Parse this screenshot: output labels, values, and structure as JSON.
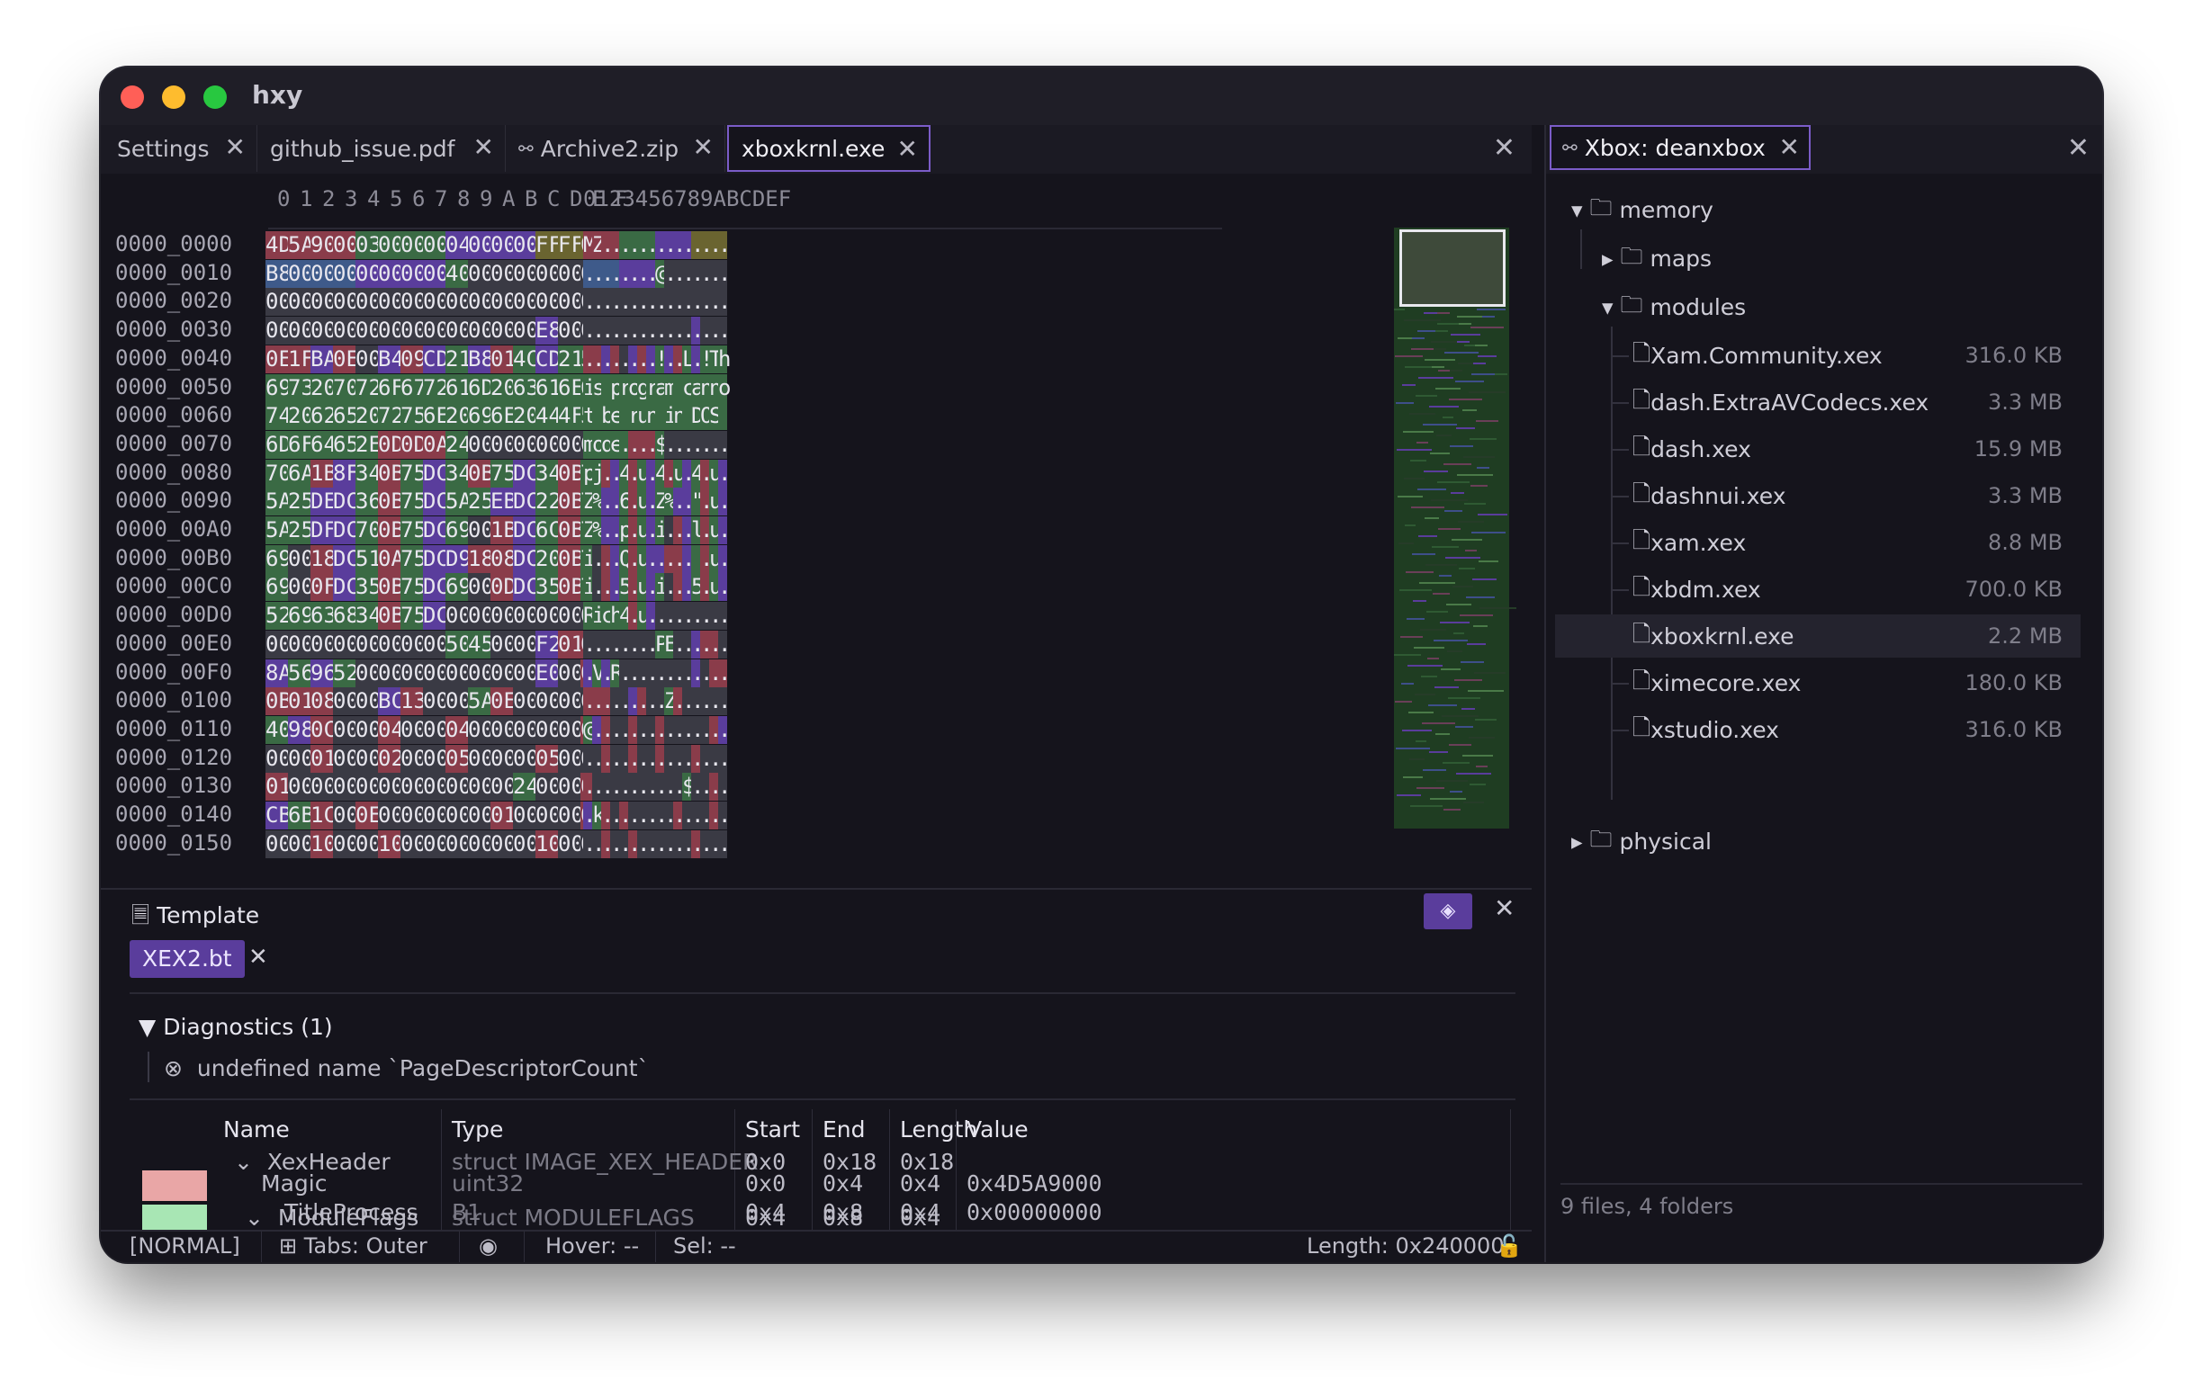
{
  "window": {
    "title": "hxy"
  },
  "colors": {
    "red": "#ff5f57",
    "yellow": "#febc2e",
    "green": "#28c840",
    "accent": "#7b5cc8"
  },
  "tabs": [
    {
      "label": "Settings",
      "icon": ""
    },
    {
      "label": "github_issue.pdf",
      "icon": ""
    },
    {
      "label": "Archive2.zip",
      "icon": "share-icon"
    },
    {
      "label": "xboxkrnl.exe",
      "icon": "",
      "active": true
    }
  ],
  "hex": {
    "col_header": [
      "0",
      "1",
      "2",
      "3",
      "4",
      "5",
      "6",
      "7",
      "8",
      "9",
      "A",
      "B",
      "C",
      "D",
      "E",
      "F"
    ],
    "ascii_header": "0123456789ABCDEF",
    "rows": [
      {
        "offset": "0000_0000",
        "bytes": "4D 5A 90 00 03 00 00 00 04 00 00 00 FF FF 00 00",
        "ascii": "MZ.............."
      },
      {
        "offset": "0000_0010",
        "bytes": "B8 00 00 00 00 00 00 00 40 00 00 00 00 00 00 00",
        "ascii": "........@......."
      },
      {
        "offset": "0000_0020",
        "bytes": "00 00 00 00 00 00 00 00 00 00 00 00 00 00 00 00",
        "ascii": "................"
      },
      {
        "offset": "0000_0030",
        "bytes": "00 00 00 00 00 00 00 00 00 00 00 00 E8 00 00 00",
        "ascii": "................"
      },
      {
        "offset": "0000_0040",
        "bytes": "0E 1F BA 0E 00 B4 09 CD 21 B8 01 4C CD 21 54 68",
        "ascii": "........!..L.!Th"
      },
      {
        "offset": "0000_0050",
        "bytes": "69 73 20 70 72 6F 67 72 61 6D 20 63 61 6E 6E 6F",
        "ascii": "is program canno"
      },
      {
        "offset": "0000_0060",
        "bytes": "74 20 62 65 20 72 75 6E 20 69 6E 20 44 4F 53 20",
        "ascii": "t be run in DOS "
      },
      {
        "offset": "0000_0070",
        "bytes": "6D 6F 64 65 2E 0D 0D 0A 24 00 00 00 00 00 00 00",
        "ascii": "mode....$......."
      },
      {
        "offset": "0000_0080",
        "bytes": "70 6A 1B 8F 34 0B 75 DC 34 0B 75 DC 34 0B 75 DC",
        "ascii": "pj..4.u.4.u.4.u."
      },
      {
        "offset": "0000_0090",
        "bytes": "5A 25 DE DC 36 0B 75 DC 5A 25 EB DC 22 0B 75 DC",
        "ascii": "Z%..6.u.Z%..\".u."
      },
      {
        "offset": "0000_00A0",
        "bytes": "5A 25 DF DC 70 0B 75 DC 69 00 1B DC 6C 0B 75 DC",
        "ascii": "Z%..p.u.i...l.u."
      },
      {
        "offset": "0000_00B0",
        "bytes": "69 00 18 DC 51 0A 75 DC D9 18 08 DC 20 0B 75 DC",
        "ascii": "i...Q.u..... .u."
      },
      {
        "offset": "0000_00C0",
        "bytes": "69 00 0F DC 35 0B 75 DC 69 00 0D DC 35 0B 75 DC",
        "ascii": "i...5.u.i...5.u."
      },
      {
        "offset": "0000_00D0",
        "bytes": "52 69 63 68 34 0B 75 DC 00 00 00 00 00 00 00 00",
        "ascii": "Rich4.u........."
      },
      {
        "offset": "0000_00E0",
        "bytes": "00 00 00 00 00 00 00 00 50 45 00 00 F2 01 0A 00",
        "ascii": "........PE......"
      },
      {
        "offset": "0000_00F0",
        "bytes": "8A 56 96 52 00 00 00 00 00 00 00 00 E0 00 03 01",
        "ascii": ".V.R............"
      },
      {
        "offset": "0000_0100",
        "bytes": "0B 01 08 00 00 BC 13 00 00 5A 0E 00 00 00 00 00",
        "ascii": ".........Z......"
      },
      {
        "offset": "0000_0110",
        "bytes": "40 98 0C 00 00 04 00 00 04 00 00 00 00 00 04 80",
        "ascii": "@..............."
      },
      {
        "offset": "0000_0120",
        "bytes": "00 00 01 00 00 02 00 00 05 00 00 00 05 00 00 00",
        "ascii": "................"
      },
      {
        "offset": "0000_0130",
        "bytes": "01 00 00 00 00 00 00 00 00 00 00 24 00 00 04 00",
        "ascii": "...........$...."
      },
      {
        "offset": "0000_0140",
        "bytes": "CB 6B 1C 00 0E 00 00 00 00 00 01 00 00 00 01 00",
        "ascii": ".k.............."
      },
      {
        "offset": "0000_0150",
        "bytes": "00 00 10 00 00 10 00 00 00 00 00 00 10 00 00 00",
        "ascii": "................"
      }
    ]
  },
  "template": {
    "title": "Template",
    "chip": "XEX2.bt",
    "diagnostics_title": "Diagnostics (1)",
    "diagnostic": "undefined name `PageDescriptorCount`",
    "headers": {
      "name": "Name",
      "type": "Type",
      "start": "Start",
      "end": "End",
      "length": "Length",
      "value": "Value"
    },
    "rows": [
      {
        "name": "XexHeader",
        "type": "struct IMAGE_XEX_HEADER",
        "start": "0x0",
        "end": "0x18",
        "length": "0x18",
        "value": ""
      },
      {
        "name": "Magic",
        "type": "uint32",
        "start": "0x0",
        "end": "0x4",
        "length": "0x4",
        "value": "0x4D5A9000"
      },
      {
        "name": "ModuleFlags",
        "type": "struct MODULEFLAGS",
        "start": "0x4",
        "end": "0x8",
        "length": "0x4",
        "value": ""
      },
      {
        "name": "TitleProcess",
        "type": "B1",
        "start": "0x4",
        "end": "0x8",
        "length": "0x4",
        "value": "0x00000000"
      }
    ],
    "swatches": [
      "#e9a6a6",
      "#a8e6b4"
    ]
  },
  "status": {
    "mode": "[NORMAL]",
    "tabs": "Tabs: Outer",
    "hover": "Hover: --",
    "sel": "Sel: --",
    "length": "Length: 0x240000"
  },
  "explorer": {
    "tab": "Xbox: deanxbox",
    "tree": {
      "memory": "memory",
      "maps": "maps",
      "modules": "modules",
      "physical": "physical",
      "files": [
        {
          "name": "Xam.Community.xex",
          "size": "316.0 KB"
        },
        {
          "name": "dash.ExtraAVCodecs.xex",
          "size": "3.3 MB"
        },
        {
          "name": "dash.xex",
          "size": "15.9 MB"
        },
        {
          "name": "dashnui.xex",
          "size": "3.3 MB"
        },
        {
          "name": "xam.xex",
          "size": "8.8 MB"
        },
        {
          "name": "xbdm.xex",
          "size": "700.0 KB"
        },
        {
          "name": "xboxkrnl.exe",
          "size": "2.2 MB",
          "selected": true
        },
        {
          "name": "ximecore.xex",
          "size": "180.0 KB"
        },
        {
          "name": "xstudio.xex",
          "size": "316.0 KB"
        }
      ]
    },
    "footer": "9 files, 4 folders"
  }
}
